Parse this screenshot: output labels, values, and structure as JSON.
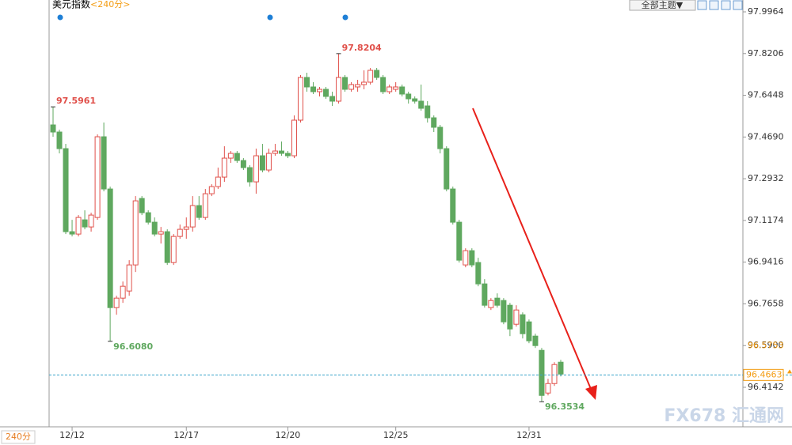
{
  "chart_data": {
    "type": "candlestick",
    "title": "美元指数",
    "period": "<240分>",
    "period_button": "240分",
    "theme_button": "全部主题▼",
    "watermark": "FX678 汇通网",
    "categories": [
      null,
      null,
      null,
      "12/12",
      null,
      null,
      null,
      null,
      null,
      null,
      null,
      null,
      null,
      null,
      null,
      null,
      null,
      null,
      null,
      null,
      null,
      "12/17",
      null,
      null,
      null,
      null,
      null,
      null,
      null,
      null,
      null,
      null,
      null,
      null,
      null,
      null,
      null,
      "12/20",
      null,
      null,
      null,
      null,
      null,
      null,
      null,
      null,
      null,
      null,
      null,
      null,
      null,
      null,
      null,
      null,
      "12/25",
      null,
      null,
      null,
      null,
      null,
      null,
      null,
      null,
      null,
      null,
      null,
      null,
      null,
      null,
      null,
      null,
      null,
      null,
      null,
      null,
      "12/31",
      null,
      null,
      null,
      null,
      null
    ],
    "open": [
      97.52,
      97.49,
      97.42,
      97.07,
      97.06,
      97.12,
      97.09,
      97.13,
      97.47,
      97.25,
      96.75,
      96.79,
      96.82,
      96.93,
      97.21,
      97.15,
      97.11,
      97.06,
      97.07,
      96.94,
      97.05,
      97.08,
      97.09,
      97.18,
      97.13,
      97.23,
      97.26,
      97.3,
      97.38,
      97.4,
      97.37,
      97.34,
      97.28,
      97.39,
      97.33,
      97.4,
      97.41,
      97.4,
      97.39,
      97.54,
      97.72,
      97.68,
      97.66,
      97.67,
      97.64,
      97.62,
      97.72,
      97.67,
      97.68,
      97.69,
      97.7,
      97.75,
      97.72,
      97.66,
      97.67,
      97.68,
      97.65,
      97.63,
      97.62,
      97.6,
      97.55,
      97.51,
      97.42,
      97.25,
      97.11,
      96.93,
      96.99,
      96.94,
      96.85,
      96.75,
      96.79,
      96.78,
      96.76,
      96.68,
      96.72,
      96.69,
      96.63,
      96.57,
      96.39,
      96.43,
      96.52
    ],
    "high": [
      97.5961,
      97.5,
      97.44,
      97.12,
      97.14,
      97.16,
      97.15,
      97.48,
      97.53,
      97.26,
      96.8,
      96.86,
      96.95,
      97.22,
      97.22,
      97.16,
      97.13,
      97.09,
      97.08,
      97.06,
      97.1,
      97.13,
      97.22,
      97.22,
      97.25,
      97.27,
      97.34,
      97.43,
      97.41,
      97.41,
      97.38,
      97.35,
      97.42,
      97.44,
      97.42,
      97.44,
      97.45,
      97.41,
      97.56,
      97.73,
      97.74,
      97.7,
      97.68,
      97.68,
      97.66,
      97.8204,
      97.73,
      97.7,
      97.71,
      97.75,
      97.76,
      97.76,
      97.73,
      97.69,
      97.7,
      97.69,
      97.66,
      97.64,
      97.69,
      97.62,
      97.56,
      97.52,
      97.43,
      97.26,
      97.12,
      97.0,
      97.0,
      96.96,
      96.87,
      96.79,
      96.81,
      96.79,
      96.77,
      96.76,
      96.73,
      96.7,
      96.64,
      96.58,
      96.45,
      96.52,
      96.53
    ],
    "low": [
      97.47,
      97.4,
      97.06,
      97.05,
      97.05,
      97.08,
      97.07,
      97.12,
      97.24,
      96.608,
      96.72,
      96.77,
      96.8,
      96.9,
      97.14,
      97.1,
      97.05,
      97.02,
      96.93,
      96.93,
      97.04,
      97.04,
      97.07,
      97.12,
      97.12,
      97.22,
      97.25,
      97.28,
      97.36,
      97.36,
      97.33,
      97.26,
      97.23,
      97.32,
      97.32,
      97.39,
      97.39,
      97.38,
      97.38,
      97.53,
      97.66,
      97.65,
      97.64,
      97.63,
      97.6,
      97.61,
      97.66,
      97.66,
      97.66,
      97.67,
      97.69,
      97.71,
      97.65,
      97.65,
      97.66,
      97.64,
      97.61,
      97.61,
      97.58,
      97.53,
      97.49,
      97.4,
      97.24,
      97.1,
      96.94,
      96.92,
      96.92,
      96.84,
      96.75,
      96.74,
      96.75,
      96.68,
      96.63,
      96.67,
      96.62,
      96.6,
      96.58,
      96.3534,
      96.38,
      96.42,
      96.46
    ],
    "close": [
      97.49,
      97.42,
      97.07,
      97.06,
      97.13,
      97.09,
      97.14,
      97.47,
      97.25,
      96.75,
      96.79,
      96.84,
      96.93,
      97.2,
      97.15,
      97.11,
      97.06,
      97.07,
      96.94,
      97.05,
      97.08,
      97.09,
      97.18,
      97.13,
      97.23,
      97.26,
      97.3,
      97.38,
      97.4,
      97.37,
      97.34,
      97.28,
      97.39,
      97.33,
      97.4,
      97.41,
      97.4,
      97.39,
      97.54,
      97.72,
      97.68,
      97.66,
      97.67,
      97.64,
      97.62,
      97.72,
      97.67,
      97.69,
      97.69,
      97.7,
      97.75,
      97.72,
      97.66,
      97.68,
      97.68,
      97.65,
      97.63,
      97.62,
      97.59,
      97.55,
      97.51,
      97.42,
      97.25,
      97.11,
      96.95,
      96.99,
      96.93,
      96.85,
      96.76,
      96.78,
      96.76,
      96.69,
      96.66,
      96.74,
      96.64,
      96.61,
      96.59,
      96.38,
      96.43,
      96.51,
      96.47
    ],
    "up_color": "#e0504a",
    "down_color": "#5fa85f",
    "ylim": [
      96.2476,
      98.0464
    ],
    "yticks": [
      97.9964,
      97.8206,
      97.6448,
      {
        "value": 97.469,
        "label": "97.4690"
      },
      97.2932,
      97.1174,
      96.9416,
      96.7658,
      {
        "value": 96.59,
        "label": "96.5900"
      },
      96.4142
    ],
    "extreme_labels": [
      {
        "value": 97.5961,
        "label": "97.5961",
        "color": "#e0504a"
      },
      {
        "value": 97.8204,
        "label": "97.8204",
        "color": "#e0504a"
      },
      {
        "value": 96.608,
        "label": "96.6080",
        "color": "#5fa85f"
      },
      {
        "value": 96.3534,
        "label": "96.3534",
        "color": "#5fa85f"
      }
    ],
    "last_price": 96.4663,
    "price_mark": 96.5753
  }
}
